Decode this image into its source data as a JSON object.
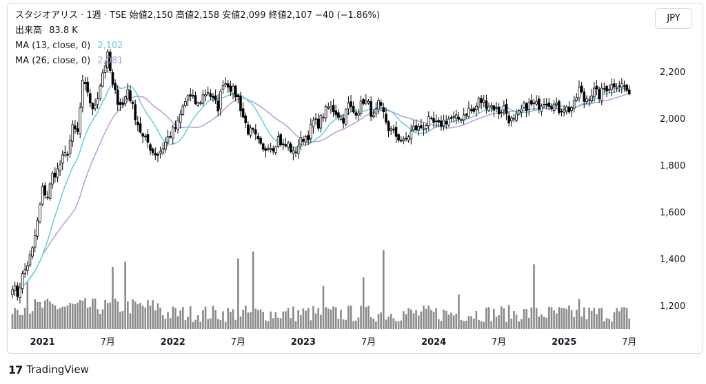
{
  "header": {
    "row1": "スタジオアリス · 1週 · TSE  始値2,150  高値2,158  安値2,099  終値2,107  −40 (−1.86%)",
    "volume_label": "出来高",
    "volume_value": "83.8 K",
    "ma13_label": "MA (13, close, 0)",
    "ma13_value": "2,102",
    "ma26_label": "MA (26, close, 0)",
    "ma26_value": "2,081"
  },
  "currency_button": "JPY",
  "brand": {
    "logo": "17",
    "name": "TradingView"
  },
  "colors": {
    "up": "#ffffff",
    "down": "#000000",
    "wick": "#000000",
    "ma13": "#5fd0d8",
    "ma26": "#b39ddb",
    "volume": "#8a8a8a"
  },
  "chart_data": {
    "type": "candlestick",
    "interval": "weekly",
    "ylim": [
      1120,
      2360
    ],
    "y_ticks": [
      "1,200",
      "1,400",
      "1,600",
      "1,800",
      "2,000",
      "2,200"
    ],
    "x_ticks": [
      {
        "label": "2021",
        "t": 12,
        "bold": true
      },
      {
        "label": "7月",
        "t": 38,
        "bold": false
      },
      {
        "label": "2022",
        "t": 64,
        "bold": true
      },
      {
        "label": "7月",
        "t": 90,
        "bold": false
      },
      {
        "label": "2023",
        "t": 116,
        "bold": true
      },
      {
        "label": "7月",
        "t": 142,
        "bold": false
      },
      {
        "label": "2024",
        "t": 168,
        "bold": true
      },
      {
        "label": "7月",
        "t": 194,
        "bold": false
      },
      {
        "label": "2025",
        "t": 220,
        "bold": true
      },
      {
        "label": "7月",
        "t": 246,
        "bold": false
      }
    ],
    "x_range": [
      0,
      248
    ],
    "anchors": [
      [
        0,
        1290
      ],
      [
        2,
        1250
      ],
      [
        4,
        1330
      ],
      [
        6,
        1380
      ],
      [
        8,
        1440
      ],
      [
        10,
        1560
      ],
      [
        12,
        1700
      ],
      [
        14,
        1670
      ],
      [
        16,
        1760
      ],
      [
        18,
        1780
      ],
      [
        20,
        1830
      ],
      [
        22,
        1860
      ],
      [
        24,
        1960
      ],
      [
        26,
        1940
      ],
      [
        28,
        2150
      ],
      [
        30,
        2120
      ],
      [
        32,
        2030
      ],
      [
        34,
        2100
      ],
      [
        36,
        2200
      ],
      [
        38,
        2270
      ],
      [
        40,
        2140
      ],
      [
        42,
        2080
      ],
      [
        44,
        2060
      ],
      [
        46,
        2130
      ],
      [
        48,
        2050
      ],
      [
        50,
        1980
      ],
      [
        52,
        1920
      ],
      [
        54,
        1900
      ],
      [
        56,
        1860
      ],
      [
        58,
        1850
      ],
      [
        60,
        1880
      ],
      [
        62,
        1920
      ],
      [
        64,
        1950
      ],
      [
        66,
        1980
      ],
      [
        68,
        2050
      ],
      [
        70,
        2100
      ],
      [
        72,
        2080
      ],
      [
        74,
        2060
      ],
      [
        76,
        2100
      ],
      [
        78,
        2120
      ],
      [
        80,
        2080
      ],
      [
        82,
        2050
      ],
      [
        84,
        2160
      ],
      [
        86,
        2150
      ],
      [
        88,
        2120
      ],
      [
        90,
        2090
      ],
      [
        92,
        2010
      ],
      [
        94,
        1950
      ],
      [
        96,
        1940
      ],
      [
        98,
        1900
      ],
      [
        100,
        1860
      ],
      [
        102,
        1890
      ],
      [
        104,
        1880
      ],
      [
        106,
        1920
      ],
      [
        108,
        1880
      ],
      [
        110,
        1890
      ],
      [
        112,
        1850
      ],
      [
        114,
        1890
      ],
      [
        116,
        1920
      ],
      [
        118,
        1930
      ],
      [
        120,
        1990
      ],
      [
        122,
        1980
      ],
      [
        124,
        2020
      ],
      [
        126,
        2050
      ],
      [
        128,
        2040
      ],
      [
        130,
        2020
      ],
      [
        132,
        2000
      ],
      [
        134,
        2060
      ],
      [
        136,
        2030
      ],
      [
        138,
        2040
      ],
      [
        140,
        2080
      ],
      [
        142,
        2060
      ],
      [
        144,
        2000
      ],
      [
        146,
        2060
      ],
      [
        148,
        2020
      ],
      [
        150,
        1960
      ],
      [
        152,
        1940
      ],
      [
        154,
        1920
      ],
      [
        156,
        1900
      ],
      [
        158,
        1930
      ],
      [
        160,
        1960
      ],
      [
        162,
        1960
      ],
      [
        164,
        1970
      ],
      [
        166,
        1990
      ],
      [
        168,
        1980
      ],
      [
        170,
        1970
      ],
      [
        172,
        1990
      ],
      [
        174,
        2000
      ],
      [
        176,
        2000
      ],
      [
        178,
        2000
      ],
      [
        180,
        2020
      ],
      [
        182,
        2040
      ],
      [
        184,
        2030
      ],
      [
        186,
        2080
      ],
      [
        188,
        2070
      ],
      [
        190,
        2060
      ],
      [
        192,
        2050
      ],
      [
        194,
        2030
      ],
      [
        196,
        2050
      ],
      [
        198,
        2000
      ],
      [
        200,
        1990
      ],
      [
        202,
        2020
      ],
      [
        204,
        2050
      ],
      [
        206,
        2060
      ],
      [
        208,
        2060
      ],
      [
        210,
        2060
      ],
      [
        212,
        2080
      ],
      [
        214,
        2070
      ],
      [
        216,
        2060
      ],
      [
        218,
        2040
      ],
      [
        220,
        2050
      ],
      [
        222,
        2040
      ],
      [
        224,
        2060
      ],
      [
        226,
        2130
      ],
      [
        228,
        2080
      ],
      [
        230,
        2100
      ],
      [
        232,
        2120
      ],
      [
        234,
        2100
      ],
      [
        236,
        2130
      ],
      [
        238,
        2140
      ],
      [
        240,
        2150
      ],
      [
        242,
        2150
      ],
      [
        244,
        2140
      ],
      [
        246,
        2107
      ]
    ],
    "volume_spikes": [
      [
        6,
        0.55
      ],
      [
        40,
        0.72
      ],
      [
        45,
        0.78
      ],
      [
        90,
        0.82
      ],
      [
        96,
        0.9
      ],
      [
        124,
        0.5
      ],
      [
        140,
        0.6
      ],
      [
        148,
        0.92
      ],
      [
        178,
        0.4
      ],
      [
        208,
        0.75
      ],
      [
        226,
        0.35
      ]
    ]
  }
}
